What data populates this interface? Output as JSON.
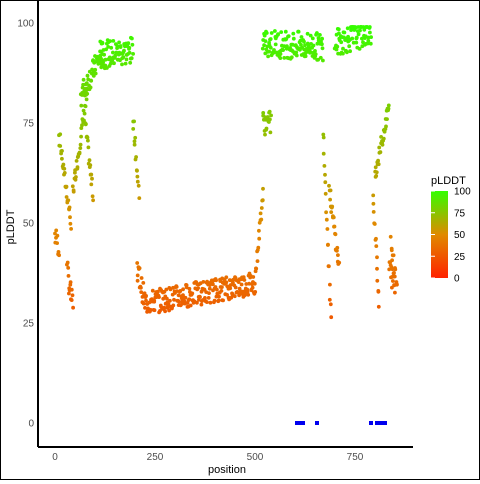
{
  "chart_data": {
    "type": "scatter",
    "title": "",
    "xlabel": "position",
    "ylabel": "pLDDT",
    "xlim": [
      -40,
      880
    ],
    "ylim": [
      -5,
      101
    ],
    "x_ticks": [
      "0",
      "250",
      "500",
      "750"
    ],
    "y_ticks": [
      "0",
      "25",
      "50",
      "75",
      "100"
    ],
    "grid": false,
    "color_scale": {
      "title": "pLDDT",
      "ticks": [
        "100",
        "75",
        "50",
        "25",
        "0"
      ],
      "low": "#ff2200",
      "mid": "#e08a00",
      "high": "#33ff00",
      "midpoint": 50
    },
    "segments": [
      {
        "x_start": 0,
        "x_end": 10,
        "y_start": 47,
        "y_end": 44
      },
      {
        "x_start": 10,
        "x_end": 40,
        "y_start": 72,
        "y_end": 50
      },
      {
        "x_start": 30,
        "x_end": 45,
        "y_start": 38,
        "y_end": 29
      },
      {
        "x_start": 45,
        "x_end": 80,
        "y_start": 58,
        "y_end": 82
      },
      {
        "x_start": 75,
        "x_end": 95,
        "y_start": 75,
        "y_end": 57
      },
      {
        "x_start": 65,
        "x_end": 120,
        "y_start": 82,
        "y_end": 93
      },
      {
        "x_start": 110,
        "x_end": 195,
        "y_start": 92,
        "y_end": 93
      },
      {
        "x_start": 195,
        "x_end": 210,
        "y_start": 77,
        "y_end": 57
      },
      {
        "x_start": 205,
        "x_end": 225,
        "y_start": 39,
        "y_end": 30
      },
      {
        "x_start": 225,
        "x_end": 500,
        "y_start": 30,
        "y_end": 35
      },
      {
        "x_start": 500,
        "x_end": 520,
        "y_start": 36,
        "y_end": 58
      },
      {
        "x_start": 520,
        "x_end": 540,
        "y_start": 75,
        "y_end": 75
      },
      {
        "x_start": 520,
        "x_end": 670,
        "y_start": 95,
        "y_end": 94
      },
      {
        "x_start": 670,
        "x_end": 690,
        "y_start": 74,
        "y_end": 27
      },
      {
        "x_start": 685,
        "x_end": 710,
        "y_start": 59,
        "y_end": 39
      },
      {
        "x_start": 700,
        "x_end": 790,
        "y_start": 95,
        "y_end": 98
      },
      {
        "x_start": 795,
        "x_end": 810,
        "y_start": 56,
        "y_end": 31
      },
      {
        "x_start": 800,
        "x_end": 835,
        "y_start": 62,
        "y_end": 79
      },
      {
        "x_start": 835,
        "x_end": 850,
        "y_start": 39,
        "y_end": 34
      },
      {
        "x_start": 840,
        "x_end": 855,
        "y_start": 45,
        "y_end": 35
      }
    ],
    "domains": [
      {
        "start": 600,
        "end": 625,
        "y": 0,
        "color": "#0000ee"
      },
      {
        "start": 650,
        "end": 660,
        "y": 0,
        "color": "#0000ee"
      },
      {
        "start": 785,
        "end": 795,
        "y": 0,
        "color": "#0000ee"
      },
      {
        "start": 800,
        "end": 830,
        "y": 0,
        "color": "#0000ee"
      }
    ]
  }
}
